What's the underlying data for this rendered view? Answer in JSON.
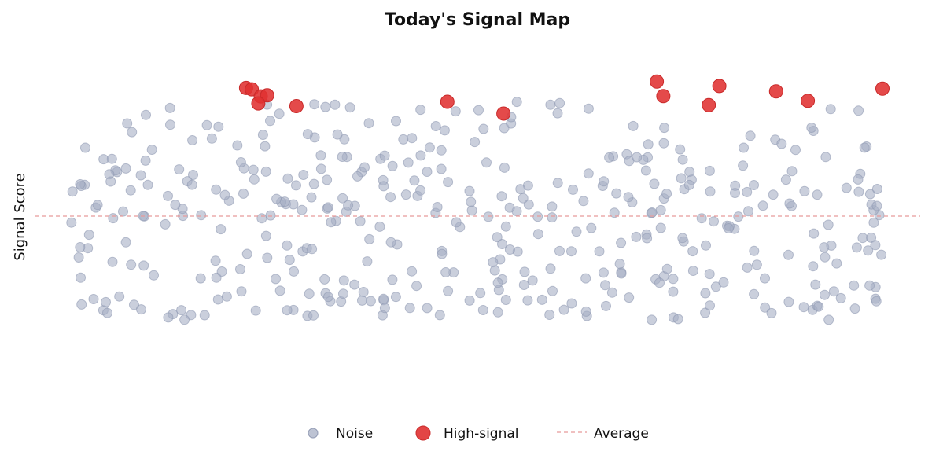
{
  "chart_data": {
    "type": "scatter",
    "title": "Today's Signal Map",
    "xlabel": "",
    "ylabel": "Signal Score",
    "xlim": [
      0,
      1
    ],
    "ylim": [
      0,
      1
    ],
    "grid": false,
    "axes_visible": false,
    "average": 0.5,
    "legend_position": "bottom-center",
    "legend": [
      {
        "label": "Noise",
        "marker": "circle",
        "color": "#a7afc4"
      },
      {
        "label": "High-signal",
        "marker": "circle",
        "color": "#e03131"
      },
      {
        "label": "Average",
        "marker": "dashed-line",
        "color": "#e89a9a"
      }
    ],
    "series": [
      {
        "name": "High-signal",
        "color": "#e03131",
        "points": [
          [
            0.216,
            0.881
          ],
          [
            0.223,
            0.877
          ],
          [
            0.234,
            0.856
          ],
          [
            0.242,
            0.859
          ],
          [
            0.231,
            0.835
          ],
          [
            0.278,
            0.827
          ],
          [
            0.464,
            0.84
          ],
          [
            0.533,
            0.805
          ],
          [
            0.722,
            0.9
          ],
          [
            0.73,
            0.857
          ],
          [
            0.786,
            0.83
          ],
          [
            0.799,
            0.887
          ],
          [
            0.869,
            0.871
          ],
          [
            0.908,
            0.843
          ],
          [
            1.0,
            0.879
          ]
        ]
      },
      {
        "name": "Noise",
        "color": "#a7afc4",
        "seed": 20240611,
        "count": 420,
        "y_bands": [
          {
            "weight": 0.32,
            "range": [
              0.19,
              0.34
            ]
          },
          {
            "weight": 0.2,
            "range": [
              0.34,
              0.5
            ]
          },
          {
            "weight": 0.26,
            "range": [
              0.5,
              0.64
            ]
          },
          {
            "weight": 0.22,
            "range": [
              0.64,
              0.84
            ]
          }
        ]
      }
    ]
  }
}
